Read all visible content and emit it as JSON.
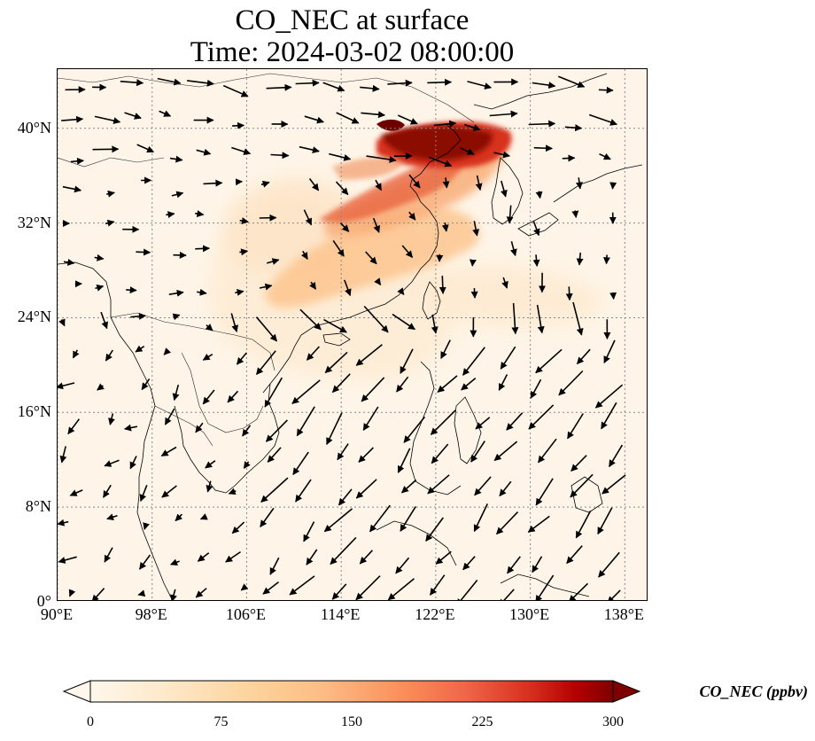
{
  "title": {
    "line1": "CO_NEC at surface",
    "line2": "Time: 2024-03-02 08:00:00"
  },
  "map": {
    "extent_deg": {
      "lon": [
        90,
        140
      ],
      "lat": [
        0,
        45
      ]
    },
    "lat_ticks": [
      {
        "v": 0,
        "label": "0°"
      },
      {
        "v": 8,
        "label": "8°N"
      },
      {
        "v": 16,
        "label": "16°N"
      },
      {
        "v": 24,
        "label": "24°N"
      },
      {
        "v": 32,
        "label": "32°N"
      },
      {
        "v": 40,
        "label": "40°N"
      }
    ],
    "lon_ticks": [
      {
        "v": 90,
        "label": "90°E"
      },
      {
        "v": 98,
        "label": "98°E"
      },
      {
        "v": 106,
        "label": "106°E"
      },
      {
        "v": 114,
        "label": "114°E"
      },
      {
        "v": 122,
        "label": "122°E"
      },
      {
        "v": 130,
        "label": "130°E"
      },
      {
        "v": 138,
        "label": "138°E"
      }
    ],
    "gridlines": "dotted",
    "layers": [
      "CO concentration filled contours",
      "coastlines and borders",
      "surface wind vectors"
    ],
    "colormap": "OrRd",
    "colors": {
      "c0": "#fff7ec",
      "c1": "#fdd49e",
      "c2": "#fc8d59",
      "c3": "#d7301f",
      "c4": "#7f0000"
    }
  },
  "colorbar": {
    "label": "CO_NEC (ppbv)",
    "ticks": [
      "0",
      "75",
      "150",
      "225",
      "300"
    ],
    "min": 0,
    "max": 300,
    "extend": "both"
  }
}
